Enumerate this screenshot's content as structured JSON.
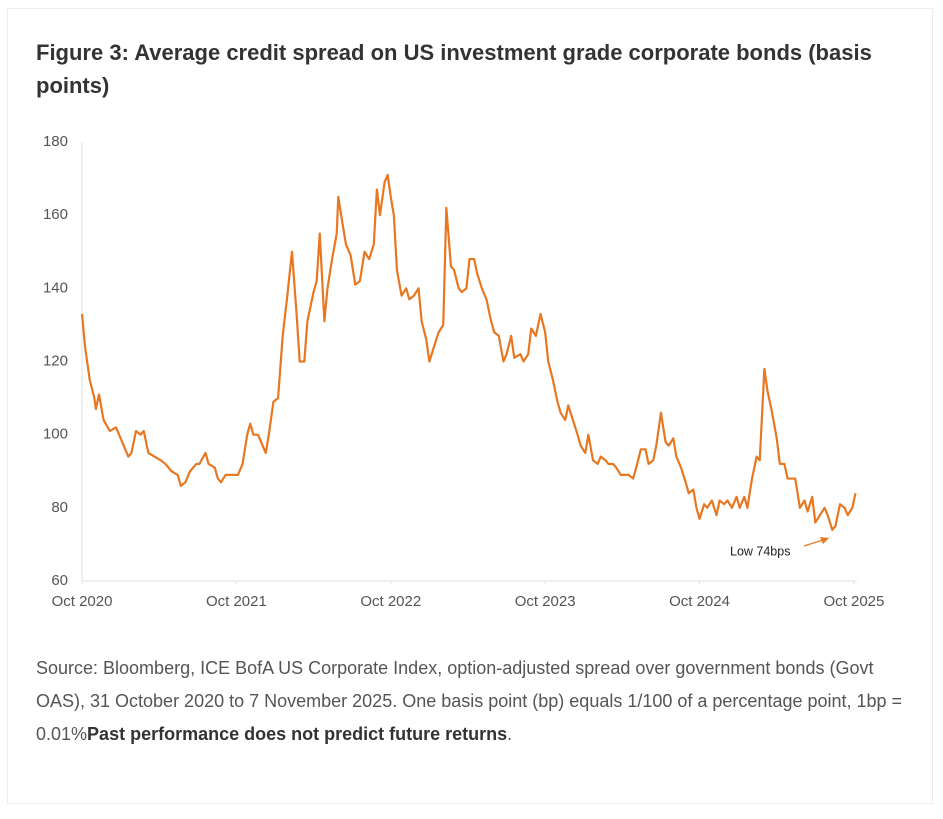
{
  "chart_data": {
    "type": "line",
    "title": "Figure 3: Average credit spread on US investment grade corporate bonds (basis points)",
    "source": "Source: Bloomberg, ICE BofA US Corporate Index, option-adjusted spread over government bonds (Govt OAS), 31 October 2020 to 7 November 2025. One basis point (bp) equals 1/100 of a percentage point, 1bp = 0.01%",
    "source_bold": "Past performance does not predict future returns",
    "source_end": ".",
    "annotation": "Low 74bps",
    "color": "#e87722",
    "xlim": [
      2020.75,
      2025.77
    ],
    "xticks": [
      {
        "value": 2020.75,
        "label": "Oct 2020"
      },
      {
        "value": 2021.75,
        "label": "Oct 2021"
      },
      {
        "value": 2022.75,
        "label": "Oct 2022"
      },
      {
        "value": 2023.75,
        "label": "Oct 2023"
      },
      {
        "value": 2024.75,
        "label": "Oct 2024"
      },
      {
        "value": 2025.75,
        "label": "Oct 2025"
      }
    ],
    "ylim": [
      60,
      180
    ],
    "yticks": [
      60,
      80,
      100,
      120,
      140,
      160,
      180
    ],
    "grid": false,
    "x": [
      2020.75,
      2020.77,
      2020.8,
      2020.83,
      2020.84,
      2020.86,
      2020.89,
      2020.93,
      2020.97,
      2021.01,
      2021.05,
      2021.07,
      2021.1,
      2021.13,
      2021.15,
      2021.18,
      2021.22,
      2021.26,
      2021.29,
      2021.33,
      2021.37,
      2021.39,
      2021.42,
      2021.45,
      2021.49,
      2021.51,
      2021.55,
      2021.57,
      2021.61,
      2021.63,
      2021.65,
      2021.68,
      2021.72,
      2021.76,
      2021.79,
      2021.82,
      2021.84,
      2021.86,
      2021.89,
      2021.92,
      2021.94,
      2021.96,
      2021.99,
      2022.02,
      2022.05,
      2022.08,
      2022.11,
      2022.14,
      2022.16,
      2022.19,
      2022.21,
      2022.25,
      2022.27,
      2022.29,
      2022.32,
      2022.34,
      2022.37,
      2022.4,
      2022.41,
      2022.44,
      2022.46,
      2022.49,
      2022.52,
      2022.55,
      2022.58,
      2022.61,
      2022.64,
      2022.66,
      2022.68,
      2022.71,
      2022.73,
      2022.75,
      2022.77,
      2022.79,
      2022.82,
      2022.85,
      2022.87,
      2022.9,
      2022.93,
      2022.95,
      2022.98,
      2023.0,
      2023.03,
      2023.06,
      2023.09,
      2023.11,
      2023.14,
      2023.16,
      2023.19,
      2023.21,
      2023.24,
      2023.26,
      2023.29,
      2023.31,
      2023.34,
      2023.37,
      2023.4,
      2023.42,
      2023.45,
      2023.48,
      2023.5,
      2023.53,
      2023.55,
      2023.59,
      2023.61,
      2023.64,
      2023.66,
      2023.69,
      2023.72,
      2023.75,
      2023.77,
      2023.8,
      2023.83,
      2023.85,
      2023.88,
      2023.9,
      2023.93,
      2023.96,
      2023.98,
      2024.01,
      2024.03,
      2024.06,
      2024.09,
      2024.11,
      2024.14,
      2024.16,
      2024.19,
      2024.21,
      2024.24,
      2024.27,
      2024.29,
      2024.32,
      2024.34,
      2024.37,
      2024.4,
      2024.42,
      2024.45,
      2024.47,
      2024.5,
      2024.53,
      2024.55,
      2024.58,
      2024.6,
      2024.63,
      2024.66,
      2024.68,
      2024.71,
      2024.73,
      2024.75,
      2024.78,
      2024.8,
      2024.83,
      2024.86,
      2024.88,
      2024.91,
      2024.93,
      2024.96,
      2024.99,
      2025.01,
      2025.04,
      2025.06,
      2025.09,
      2025.12,
      2025.14,
      2025.17,
      2025.19,
      2025.22,
      2025.25,
      2025.27,
      2025.3,
      2025.32,
      2025.35,
      2025.37,
      2025.4,
      2025.43,
      2025.45,
      2025.48,
      2025.5,
      2025.53,
      2025.56,
      2025.58,
      2025.61,
      2025.63,
      2025.66,
      2025.69,
      2025.71,
      2025.74,
      2025.76
    ],
    "values": [
      133,
      124,
      115,
      110,
      107,
      111,
      104,
      101,
      102,
      98,
      94,
      95,
      101,
      100,
      101,
      95,
      94,
      93,
      92,
      90,
      89,
      86,
      87,
      90,
      92,
      92,
      95,
      92,
      91,
      88,
      87,
      89,
      89,
      89,
      92,
      100,
      103,
      100,
      100,
      97,
      95,
      100,
      109,
      110,
      127,
      138,
      150,
      133,
      120,
      120,
      131,
      139,
      142,
      155,
      131,
      140,
      148,
      155,
      165,
      157,
      152,
      149,
      141,
      142,
      150,
      148,
      152,
      167,
      160,
      169,
      171,
      165,
      160,
      145,
      138,
      140,
      137,
      138,
      140,
      131,
      126,
      120,
      124,
      128,
      130,
      162,
      146,
      145,
      140,
      139,
      140,
      148,
      148,
      144,
      140,
      137,
      131,
      128,
      127,
      120,
      122,
      127,
      121,
      122,
      120,
      122,
      129,
      127,
      133,
      128,
      120,
      115,
      109,
      106,
      104,
      108,
      104,
      100,
      97,
      95,
      100,
      93,
      92,
      94,
      93,
      92,
      92,
      91,
      89,
      89,
      89,
      88,
      91,
      96,
      96,
      92,
      93,
      97,
      106,
      98,
      97,
      99,
      94,
      91,
      87,
      84,
      85,
      80,
      77,
      81,
      80,
      82,
      78,
      82,
      81,
      82,
      80,
      83,
      80,
      83,
      80,
      88,
      94,
      93,
      118,
      112,
      106,
      99,
      92,
      92,
      88,
      88,
      88,
      80,
      82,
      79,
      83,
      76,
      78,
      80,
      78,
      74,
      75,
      81,
      80,
      78,
      80,
      84
    ]
  }
}
